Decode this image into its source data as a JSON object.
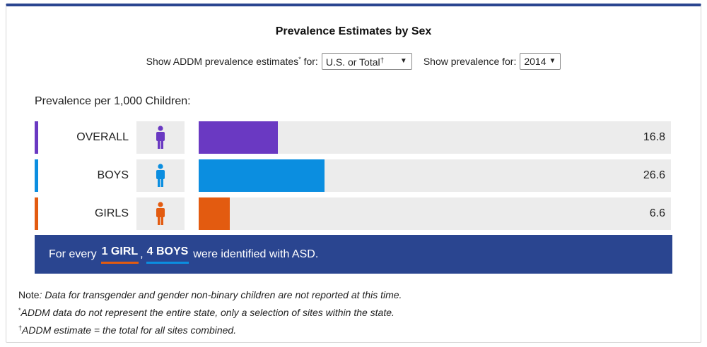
{
  "title": "Prevalence Estimates by Sex",
  "controls": {
    "area_label": "Show ADDM prevalence estimates",
    "area_label_sup": "*",
    "area_label_suffix": " for:",
    "area_value": "U.S. or Total",
    "area_value_dagger": "†",
    "year_label": "Show prevalence for:",
    "year_value": "2014"
  },
  "subtitle": "Prevalence per 1,000 Children:",
  "rows": [
    {
      "label": "OVERALL",
      "value": "16.8",
      "color": "#6a39c2",
      "icon": "person-icon"
    },
    {
      "label": "BOYS",
      "value": "26.6",
      "color": "#0b8ee0",
      "icon": "person-icon"
    },
    {
      "label": "GIRLS",
      "value": "6.6",
      "color": "#e35b10",
      "icon": "person-icon"
    }
  ],
  "scale_max": 100,
  "banner": {
    "prefix": "For every",
    "girl_text": "1 GIRL",
    "comma": ",",
    "boy_text": "4 BOYS",
    "suffix": "were identified with ASD."
  },
  "notes": {
    "note_label": "Note",
    "note_text": ": Data for transgender and gender non-binary children are not reported at this time.",
    "star_mark": "*",
    "star_text": "ADDM data do not represent the entire state, only a selection of sites within the state.",
    "dagger_mark": "†",
    "dagger_text": "ADDM estimate = the total for all sites combined."
  }
}
